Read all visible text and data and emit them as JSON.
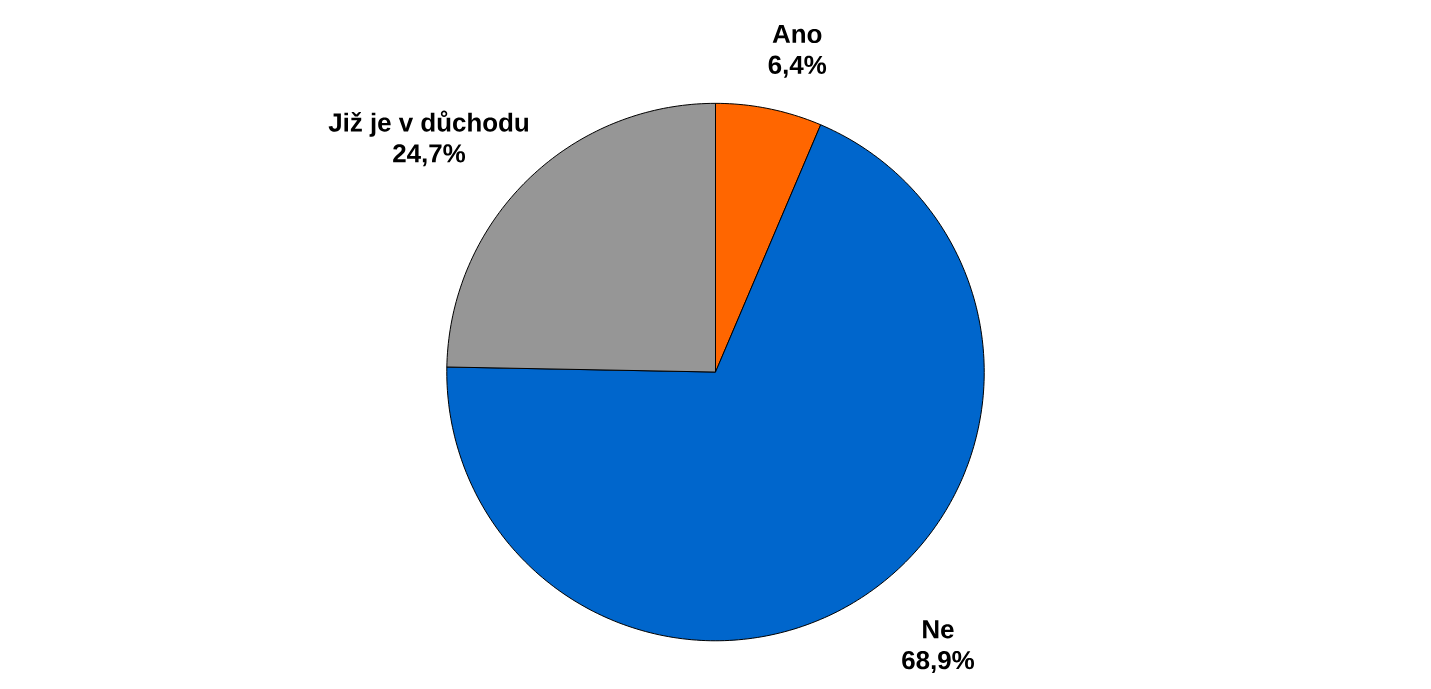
{
  "chart_data": {
    "type": "pie",
    "categories": [
      "Ano",
      "Ne",
      "Již je v důchodu"
    ],
    "values": [
      6.4,
      68.9,
      24.7
    ],
    "colors": [
      "#ff6600",
      "#0066cc",
      "#969696"
    ],
    "value_labels": [
      "6,4%",
      "68,9%",
      "24,7%"
    ]
  }
}
